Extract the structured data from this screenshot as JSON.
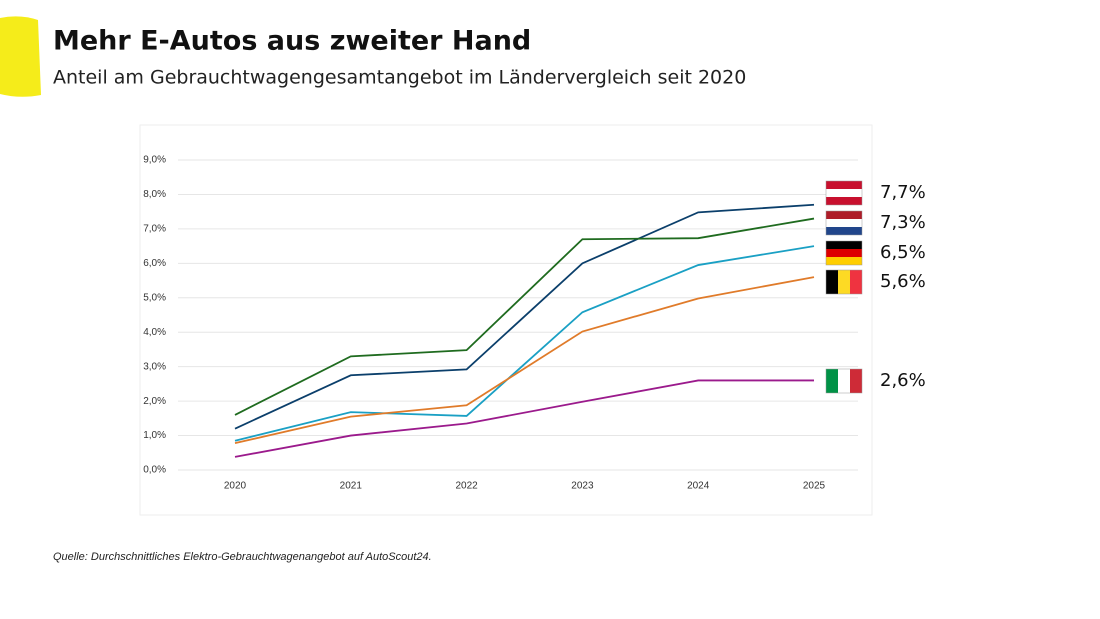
{
  "chart_data": {
    "type": "line",
    "title": "Mehr E-Autos aus zweiter Hand",
    "subtitle": "Anteil am Gebrauchtwagengesamtangebot im Ländervergleich seit 2020",
    "source": "Quelle: Durchschnittliches Elektro-Gebrauchtwagenangebot auf AutoScout24.",
    "categories": [
      "2020",
      "2021",
      "2022",
      "2023",
      "2024",
      "2025"
    ],
    "ylim": [
      0,
      9
    ],
    "yticks": [
      {
        "value": 0,
        "label": "0,0%"
      },
      {
        "value": 1,
        "label": "1,0%"
      },
      {
        "value": 2,
        "label": "2,0%"
      },
      {
        "value": 3,
        "label": "3,0%"
      },
      {
        "value": 4,
        "label": "4,0%"
      },
      {
        "value": 5,
        "label": "5,0%"
      },
      {
        "value": 6,
        "label": "6,0%"
      },
      {
        "value": 7,
        "label": "7,0%"
      },
      {
        "value": 8,
        "label": "8,0%"
      },
      {
        "value": 9,
        "label": "9,0%"
      }
    ],
    "grid": true,
    "series": [
      {
        "color": "#0b3f6b",
        "values": [
          1.2,
          2.75,
          2.92,
          6.0,
          7.48,
          7.7
        ],
        "value_labels": [
          null,
          null,
          null,
          null,
          null,
          "7,7%"
        ]
      },
      {
        "color": "#1f6b1f",
        "values": [
          1.6,
          3.3,
          3.48,
          6.7,
          6.73,
          7.3
        ],
        "value_labels": [
          null,
          null,
          null,
          null,
          null,
          "7,3%"
        ]
      },
      {
        "color": "#1aa0c4",
        "values": [
          0.85,
          1.68,
          1.57,
          4.58,
          5.95,
          6.5
        ],
        "value_labels": [
          null,
          null,
          null,
          null,
          null,
          "6,5%"
        ]
      },
      {
        "color": "#e07b2a",
        "values": [
          0.78,
          1.55,
          1.88,
          4.02,
          4.98,
          5.6
        ],
        "value_labels": [
          null,
          null,
          null,
          null,
          null,
          "5,6%"
        ]
      },
      {
        "color": "#9b1a8c",
        "values": [
          0.38,
          1.0,
          1.35,
          1.98,
          2.6,
          2.6
        ],
        "value_labels": [
          null,
          null,
          null,
          null,
          null,
          "2,6%"
        ]
      }
    ]
  }
}
